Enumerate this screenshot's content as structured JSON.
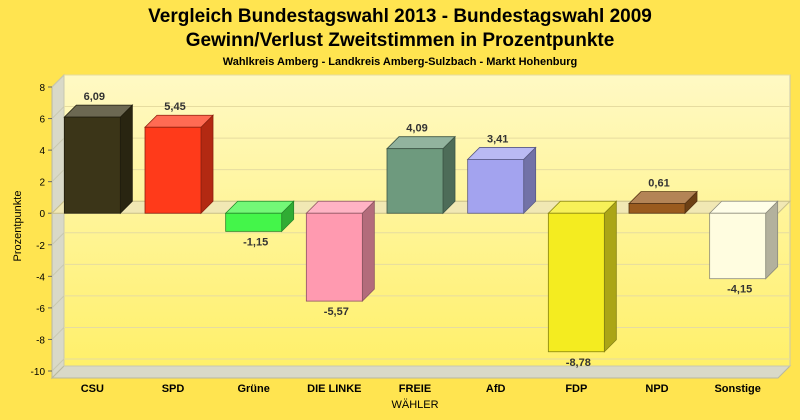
{
  "chart_data": {
    "type": "bar",
    "title": "Vergleich Bundestagswahl 2013 - Bundestagswahl 2009",
    "title2": "Gewinn/Verlust Zweitstimmen in Prozentpunkte",
    "subtitle": "Wahlkreis Amberg - Landkreis Amberg-Sulzbach - Markt Hohenburg",
    "xlabel": "WÄHLER",
    "ylabel": "Prozentpunkte",
    "ylim": [
      -10,
      8
    ],
    "yticks": [
      "8",
      "6",
      "4",
      "2",
      "0",
      "-2",
      "-4",
      "-6",
      "-8",
      "-10"
    ],
    "categories": [
      "CSU",
      "SPD",
      "Grüne",
      "DIE LINKE",
      "FREIE",
      "AfD",
      "FDP",
      "NPD",
      "Sonstige"
    ],
    "values": [
      6.09,
      5.45,
      -1.15,
      -5.57,
      4.09,
      3.41,
      -8.78,
      0.61,
      -4.15
    ],
    "value_labels": [
      "6,09",
      "5,45",
      "-1,15",
      "-5,57",
      "4,09",
      "3,41",
      "-8,78",
      "0,61",
      "-4,15"
    ],
    "colors": [
      "#3b3518",
      "#ff3a1a",
      "#44f54a",
      "#ff9ab0",
      "#6e9a7e",
      "#a3a3ef",
      "#f4ec20",
      "#9a5b1e",
      "#fffde0"
    ]
  }
}
